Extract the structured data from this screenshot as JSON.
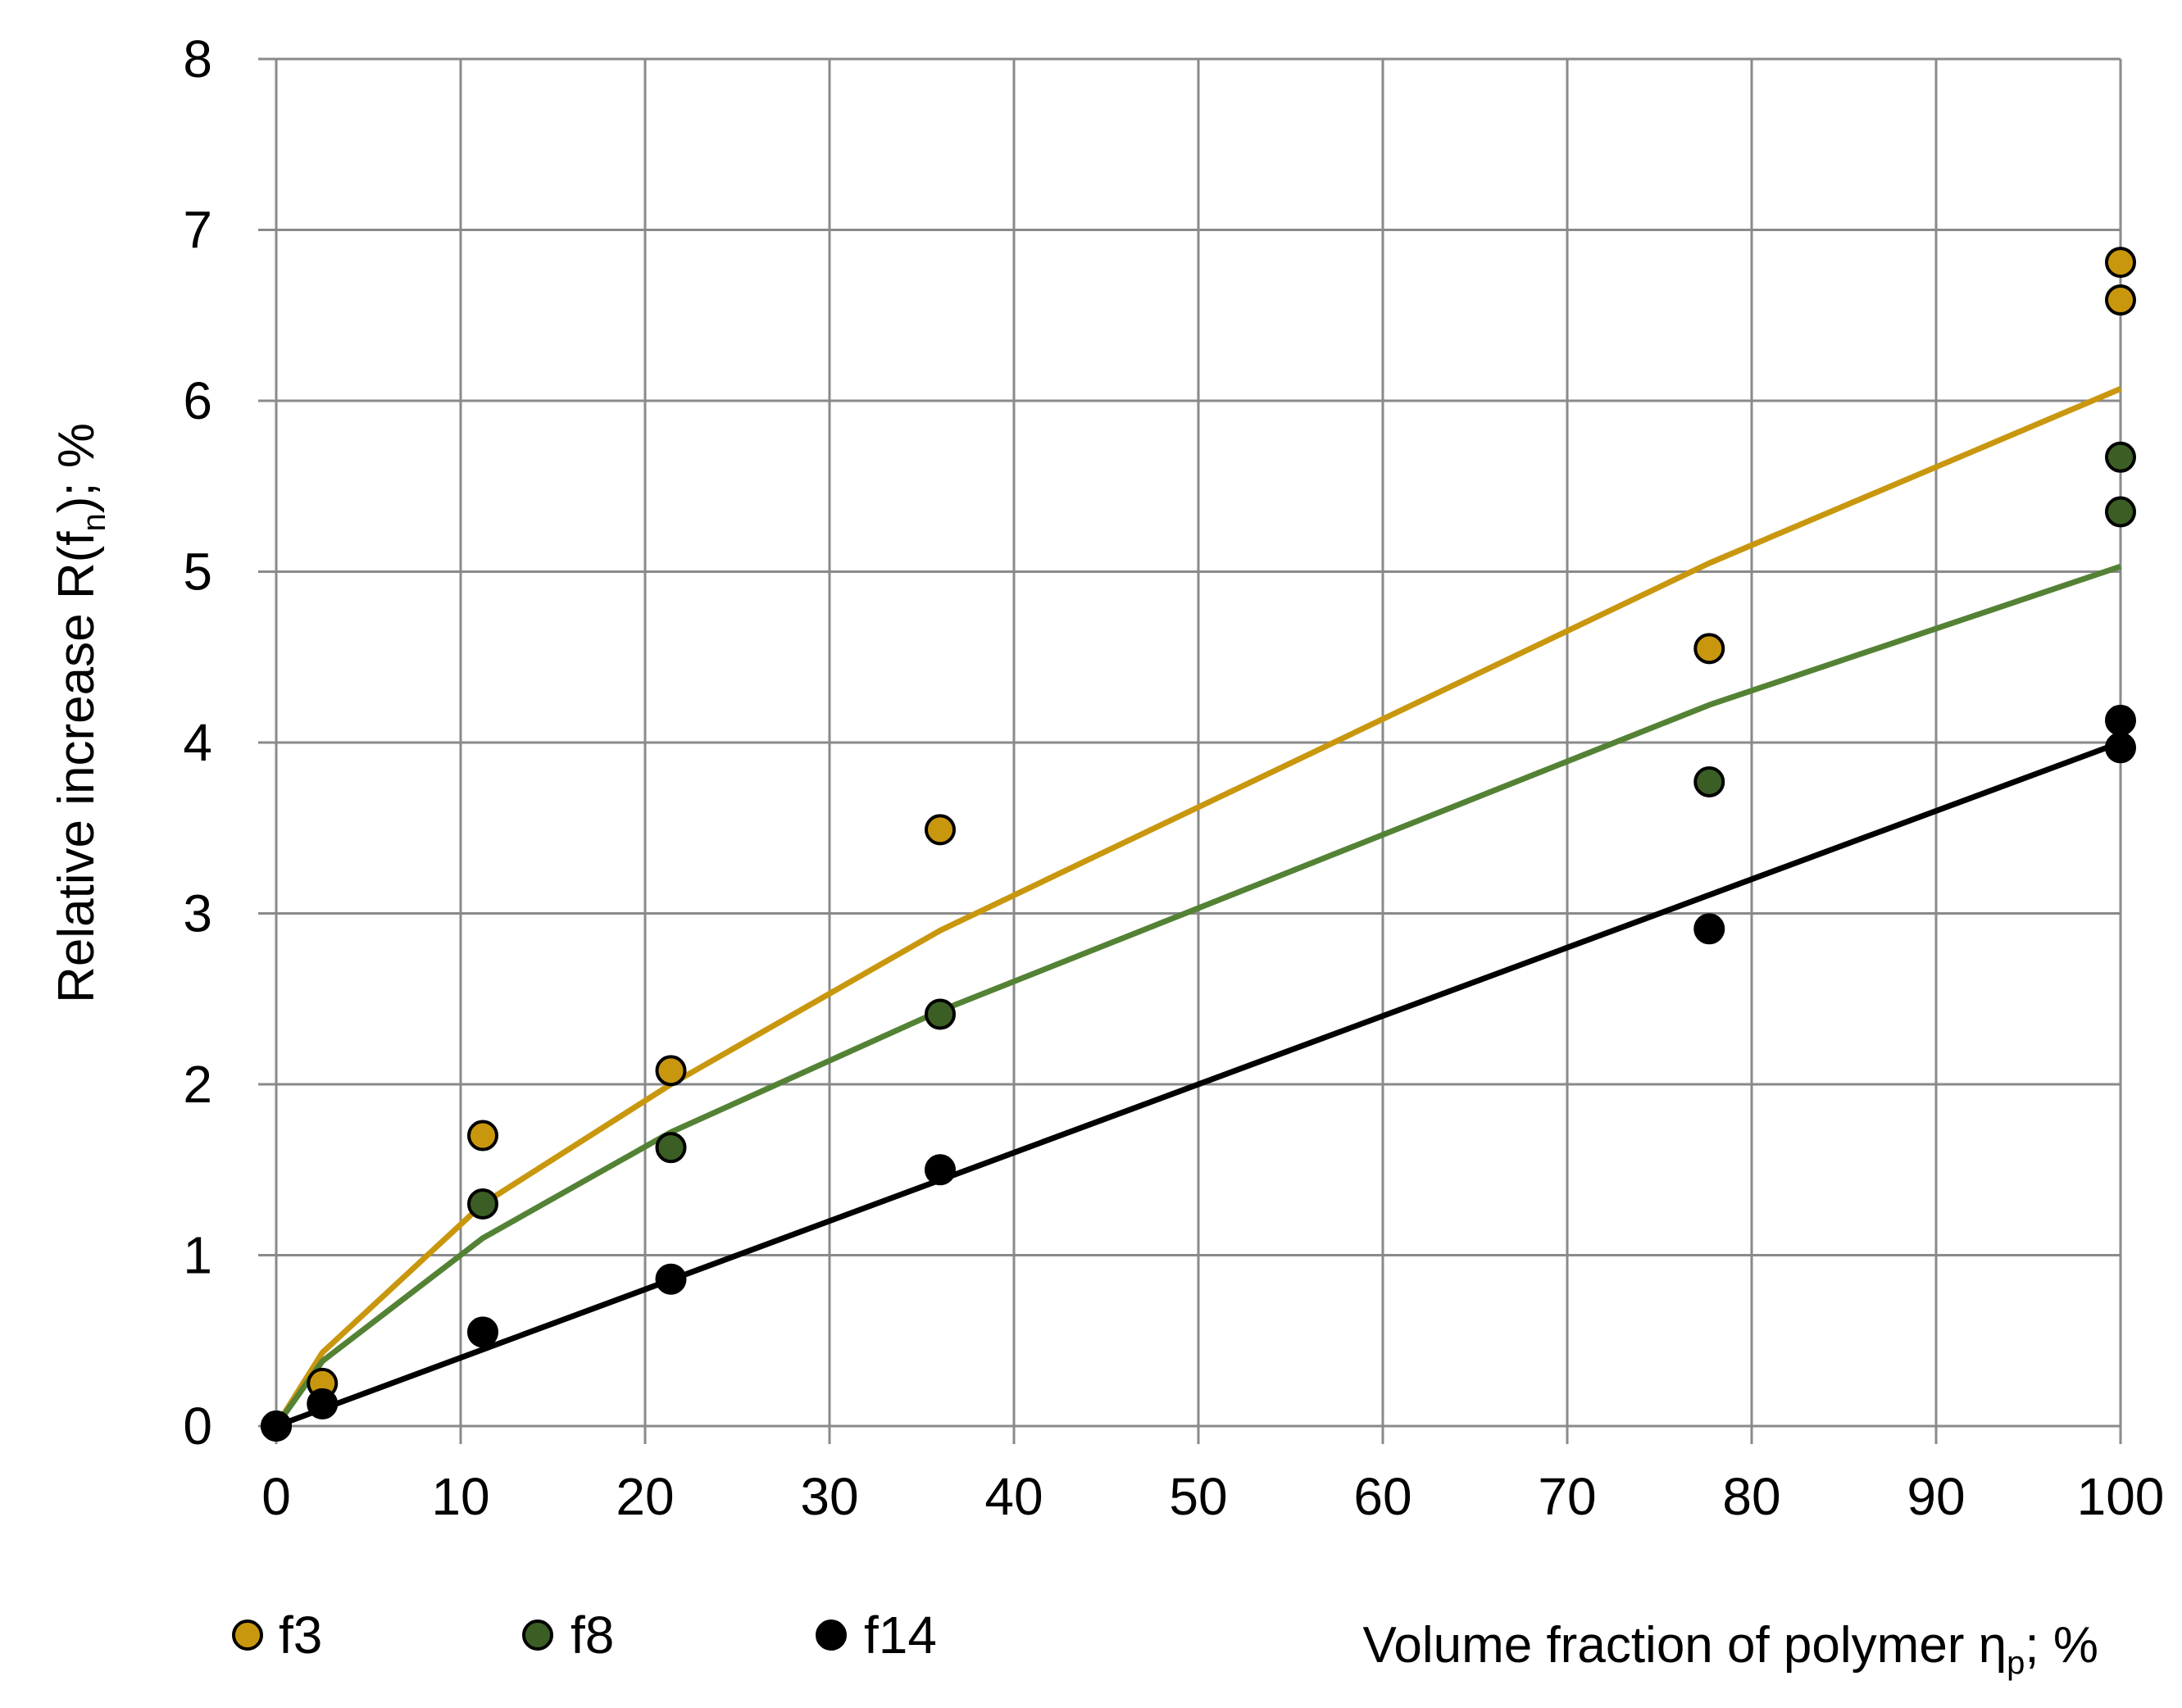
{
  "chart_data": {
    "type": "scatter",
    "xlabel": {
      "main": "Volume fraction of polymer η",
      "sub": "p",
      "tail": "; %"
    },
    "ylabel": {
      "main": "Relative increase R(f",
      "sub": "n",
      "tail": "); %"
    },
    "xlim": [
      0,
      100
    ],
    "ylim": [
      0,
      8
    ],
    "x_ticks": [
      0,
      10,
      20,
      30,
      40,
      50,
      60,
      70,
      80,
      90,
      100
    ],
    "y_ticks": [
      0,
      1,
      2,
      3,
      4,
      5,
      6,
      7,
      8
    ],
    "grid": true,
    "legend_position": "bottom-left",
    "series": [
      {
        "name": "f3",
        "color": "#C9970E",
        "points": [
          [
            0,
            0
          ],
          [
            2.5,
            0.25
          ],
          [
            11.2,
            1.7
          ],
          [
            21.4,
            2.08
          ],
          [
            36.0,
            3.49
          ],
          [
            77.7,
            4.55
          ],
          [
            100,
            6.59
          ],
          [
            100,
            6.81
          ]
        ],
        "fit": [
          [
            0,
            0
          ],
          [
            2.5,
            0.43
          ],
          [
            11.2,
            1.3
          ],
          [
            21.4,
            2.0
          ],
          [
            36.0,
            2.9
          ],
          [
            77.7,
            5.05
          ],
          [
            100,
            6.07
          ]
        ]
      },
      {
        "name": "f8",
        "color": "#3B5E24",
        "fit_color": "#548235",
        "points": [
          [
            11.2,
            1.3
          ],
          [
            21.4,
            1.63
          ],
          [
            36.0,
            2.41
          ],
          [
            77.7,
            3.77
          ],
          [
            100,
            5.35
          ],
          [
            100,
            5.67
          ]
        ],
        "fit": [
          [
            0,
            0
          ],
          [
            2.5,
            0.38
          ],
          [
            11.2,
            1.1
          ],
          [
            21.4,
            1.72
          ],
          [
            36.0,
            2.43
          ],
          [
            77.7,
            4.22
          ],
          [
            100,
            5.03
          ]
        ]
      },
      {
        "name": "f14",
        "color": "#000000",
        "points": [
          [
            0,
            0
          ],
          [
            2.5,
            0.13
          ],
          [
            11.2,
            0.55
          ],
          [
            21.4,
            0.86
          ],
          [
            36.0,
            1.5
          ],
          [
            77.7,
            2.91
          ],
          [
            100,
            3.97
          ],
          [
            100,
            4.13
          ]
        ],
        "fit": [
          [
            0,
            0
          ],
          [
            100,
            4.0
          ]
        ]
      }
    ]
  }
}
